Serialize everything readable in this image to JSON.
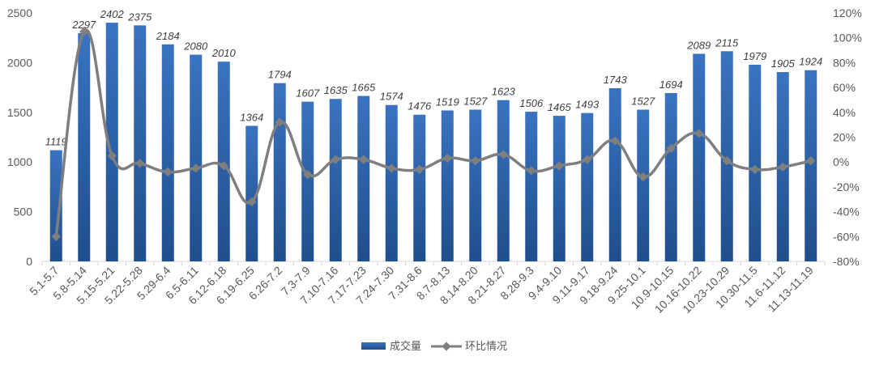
{
  "chart_data": {
    "type": "bar",
    "title": "",
    "categories": [
      "5.1-5.7",
      "5.8-5.14",
      "5.15-5.21",
      "5.22-5.28",
      "5.29-6.4",
      "6.5-6.11",
      "6.12-6.18",
      "6.19-6.25",
      "6.26-7.2",
      "7.3-7.9",
      "7.10-7.16",
      "7.17-7.23",
      "7.24-7.30",
      "7.31-8.6",
      "8.7-8.13",
      "8.14-8.20",
      "8.21-8.27",
      "8.28-9.3",
      "9.4-9.10",
      "9.11-9.17",
      "9.18-9.24",
      "9.25-10.1",
      "10.9-10.15",
      "10.16-10.22",
      "10.23-10.29",
      "10.30-11.5",
      "11.6-11.12",
      "11.13-11.19"
    ],
    "series": [
      {
        "name": "成交量",
        "type": "bar",
        "axis": "left",
        "color": "#2E62A8",
        "values": [
          1119,
          2297,
          2402,
          2375,
          2184,
          2080,
          2010,
          1364,
          1794,
          1607,
          1635,
          1665,
          1574,
          1476,
          1519,
          1527,
          1623,
          1506,
          1465,
          1493,
          1743,
          1527,
          1694,
          2089,
          2115,
          1979,
          1905,
          1924
        ]
      },
      {
        "name": "环比情况",
        "type": "line",
        "axis": "right",
        "color": "#7F7F7F",
        "values": [
          -0.6,
          1.05,
          0.05,
          -0.01,
          -0.08,
          -0.05,
          -0.03,
          -0.32,
          0.32,
          -0.1,
          0.02,
          0.02,
          -0.05,
          -0.06,
          0.03,
          0.01,
          0.06,
          -0.07,
          -0.03,
          0.02,
          0.17,
          -0.12,
          0.11,
          0.23,
          0.01,
          -0.06,
          -0.04,
          0.01
        ]
      }
    ],
    "y_left": {
      "min": 0,
      "max": 2500,
      "step": 500,
      "ticks": [
        "0",
        "500",
        "1000",
        "1500",
        "2000",
        "2500"
      ]
    },
    "y_right": {
      "min": -0.8,
      "max": 1.2,
      "step": 0.2,
      "ticks": [
        "-80%",
        "-60%",
        "-40%",
        "-20%",
        "0%",
        "20%",
        "40%",
        "60%",
        "80%",
        "100%",
        "120%"
      ]
    },
    "grid": false,
    "legend": "bottom"
  }
}
